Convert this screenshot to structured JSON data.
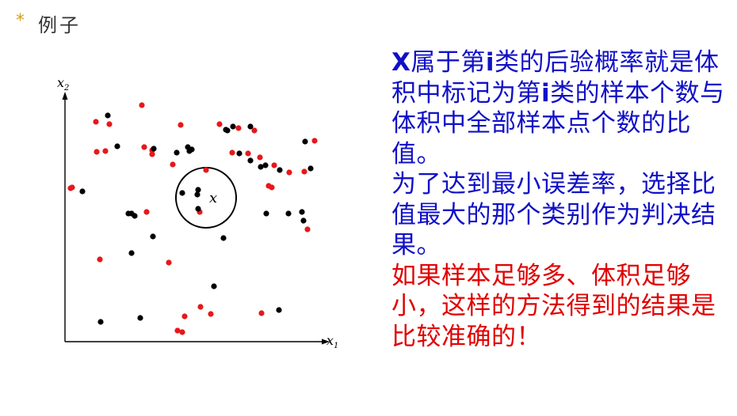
{
  "slide": {
    "bullet": "*",
    "heading": "例子"
  },
  "colors": {
    "red_class": "#e8171a",
    "black_class": "#000000",
    "blue_text": "#1010c8",
    "red_text": "#e00000"
  },
  "text": {
    "p1_x": "X",
    "p1_a": "属于第",
    "p1_i": "i",
    "p1_b": "类的后验概率就是体积中标记为第",
    "p1_i2": "i",
    "p1_c": "类的样本个数与体积中全部样本点个数的比值。",
    "p2": "为了达到最小误差率，选择比值最大的那个类别作为判决结果。",
    "p3": "如果样本足够多、体积足够小，这样的方法得到的结果是比较准确的！"
  },
  "chart_data": {
    "type": "scatter",
    "xlabel": "x",
    "xlabel_sub": "1",
    "ylabel": "x",
    "ylabel_sub": "2",
    "center_label": "x",
    "xlim": [
      0,
      320
    ],
    "ylim": [
      0,
      330
    ],
    "circle": {
      "cx": 178,
      "cy": 182,
      "r": 38
    },
    "series": [
      {
        "color": "#e8171a",
        "points": [
          [
            39,
            278
          ],
          [
            56,
            275
          ],
          [
            97,
            299
          ],
          [
            146,
            274
          ],
          [
            195,
            275
          ],
          [
            219,
            270
          ],
          [
            239,
            267
          ],
          [
            40,
            240
          ],
          [
            51,
            241
          ],
          [
            100,
            246
          ],
          [
            110,
            242
          ],
          [
            110,
            237
          ],
          [
            136,
            224
          ],
          [
            178,
            217
          ],
          [
            211,
            239
          ],
          [
            231,
            238
          ],
          [
            246,
            233
          ],
          [
            264,
            223
          ],
          [
            283,
            214
          ],
          [
            302,
            215
          ],
          [
            315,
            254
          ],
          [
            9,
            195
          ],
          [
            7,
            194
          ],
          [
            103,
            164
          ],
          [
            170,
            164
          ],
          [
            257,
            197
          ],
          [
            261,
            195
          ],
          [
            306,
            142
          ],
          [
            44,
            104
          ],
          [
            131,
            100
          ],
          [
            171,
            44
          ],
          [
            184,
            35
          ],
          [
            151,
            32
          ],
          [
            248,
            36
          ],
          [
            142,
            14
          ],
          [
            148,
            12
          ]
        ]
      },
      {
        "color": "#000000",
        "points": [
          [
            54,
            286
          ],
          [
            66,
            247
          ],
          [
            112,
            244
          ],
          [
            141,
            239
          ],
          [
            155,
            246
          ],
          [
            157,
            241
          ],
          [
            160,
            243
          ],
          [
            203,
            268
          ],
          [
            205,
            267
          ],
          [
            212,
            272
          ],
          [
            234,
            272
          ],
          [
            220,
            238
          ],
          [
            234,
            229
          ],
          [
            247,
            221
          ],
          [
            253,
            223
          ],
          [
            271,
            217
          ],
          [
            303,
            253
          ],
          [
            310,
            219
          ],
          [
            22,
            190
          ],
          [
            80,
            162
          ],
          [
            84,
            162
          ],
          [
            88,
            159
          ],
          [
            111,
            133
          ],
          [
            84,
            112
          ],
          [
            167,
            186
          ],
          [
            168,
            192
          ],
          [
            148,
            188
          ],
          [
            168,
            168
          ],
          [
            200,
            131
          ],
          [
            282,
            162
          ],
          [
            301,
            153
          ],
          [
            299,
            164
          ],
          [
            254,
            162
          ],
          [
            188,
            70
          ],
          [
            45,
            25
          ],
          [
            95,
            30
          ],
          [
            270,
            40
          ]
        ]
      }
    ]
  }
}
